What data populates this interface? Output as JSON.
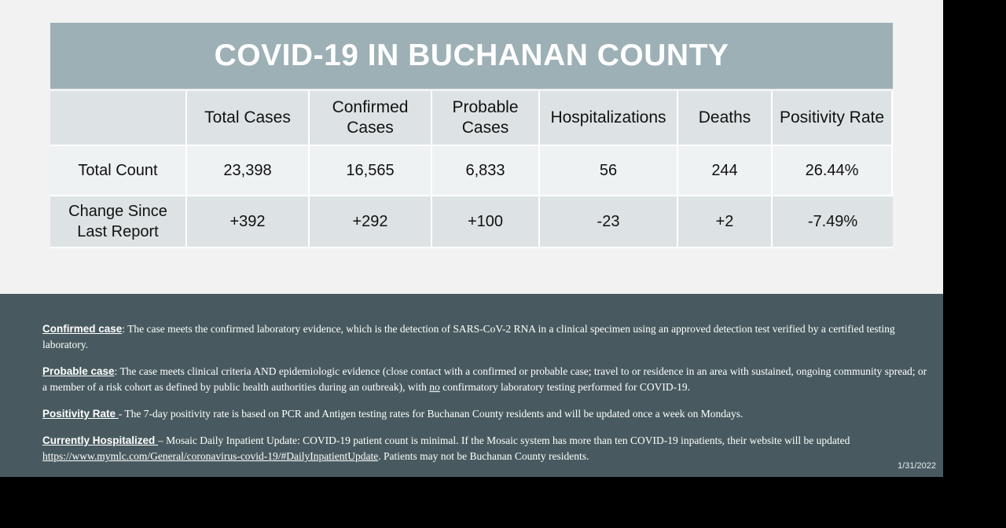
{
  "title": "COVID-19 IN BUCHANAN COUNTY",
  "table": {
    "headers": [
      "",
      "Total Cases",
      "Confirmed Cases",
      "Probable Cases",
      "Hospitalizations",
      "Deaths",
      "Positivity Rate"
    ],
    "rows": [
      [
        "Total Count",
        "23,398",
        "16,565",
        "6,833",
        "56",
        "244",
        "26.44%"
      ],
      [
        "Change Since Last Report",
        "+392",
        "+292",
        "+100",
        "-23",
        "+2",
        "-7.49%"
      ]
    ]
  },
  "definitions": {
    "confirmed": {
      "term": "Confirmed case",
      "sep": ": ",
      "text": "The case meets the confirmed laboratory evidence, which is the detection of SARS-CoV-2 RNA in a clinical specimen using an approved detection test verified by a certified testing laboratory."
    },
    "probable": {
      "term": "Probable case",
      "sep": ": ",
      "text_before": "The case meets clinical criteria AND epidemiologic evidence (close contact with a confirmed or probable case; travel to or residence in an area with sustained, ongoing community spread; or a member of a risk cohort as defined by public health authorities during an outbreak), with ",
      "emphasis": "no",
      "text_after": " confirmatory laboratory testing performed for COVID-19."
    },
    "positivity": {
      "term": "Positivity Rate ",
      "text": " - The 7-day positivity rate is based on PCR and Antigen testing rates for Buchanan County residents and will be updated once a week on Mondays."
    },
    "hospitalized": {
      "term": "Currently Hospitalized ",
      "text_before": "– Mosaic Daily Inpatient Update: COVID-19 patient count is minimal. If the Mosaic system has more than ten COVID-19 inpatients, their website will be updated ",
      "link": "https://www.mymlc.com/General/coronavirus-covid-19/#DailyInpatientUpdate",
      "text_after": ". Patients may not be Buchanan County residents."
    }
  },
  "date": "1/31/2022"
}
